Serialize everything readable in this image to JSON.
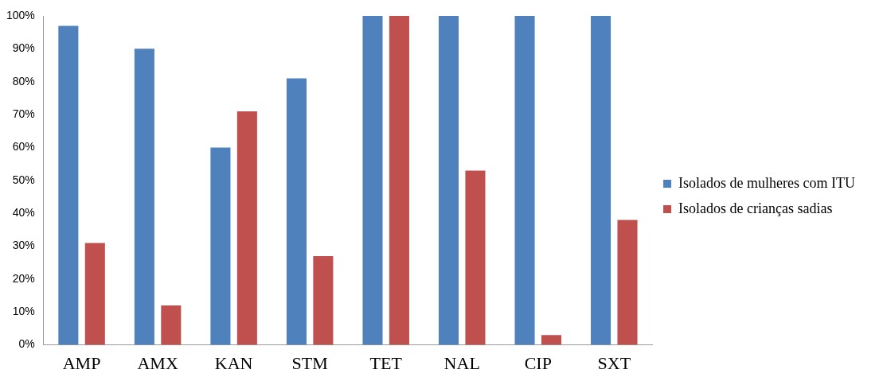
{
  "chart_data": {
    "type": "bar",
    "categories": [
      "AMP",
      "AMX",
      "KAN",
      "STM",
      "TET",
      "NAL",
      "CIP",
      "SXT"
    ],
    "series": [
      {
        "name": "Isolados de mulheres com ITU",
        "color": "#4f81bd",
        "values": [
          97,
          90,
          60,
          81,
          100,
          100,
          100,
          100
        ]
      },
      {
        "name": "Isolados de crianças sadias",
        "color": "#c0504d",
        "values": [
          31,
          12,
          71,
          27,
          100,
          53,
          3,
          38
        ]
      }
    ],
    "ylim": [
      0,
      100
    ],
    "yticks": [
      {
        "value": 0,
        "label": "0%"
      },
      {
        "value": 10,
        "label": "10%"
      },
      {
        "value": 20,
        "label": "20%"
      },
      {
        "value": 30,
        "label": "30%"
      },
      {
        "value": 40,
        "label": "40%"
      },
      {
        "value": 50,
        "label": "50%"
      },
      {
        "value": 60,
        "label": "60%"
      },
      {
        "value": 70,
        "label": "70%"
      },
      {
        "value": 80,
        "label": "80%"
      },
      {
        "value": 90,
        "label": "90%"
      },
      {
        "value": 100,
        "label": "100%"
      }
    ],
    "grid": false,
    "legend": "right"
  }
}
